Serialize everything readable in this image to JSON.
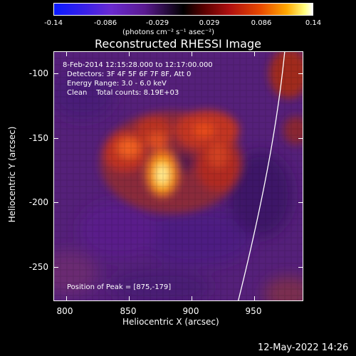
{
  "colorbar": {
    "ticks": [
      "-0.14",
      "-0.086",
      "-0.029",
      "0.029",
      "0.086",
      "0.14"
    ],
    "units": "(photons cm⁻² s⁻¹ asec⁻²)"
  },
  "title": "Reconstructed RHESSI Image",
  "annotations": {
    "time_range": "8-Feb-2014 12:15:28.000 to 12:17:00.000",
    "detectors": "Detectors: 3F 4F 5F 6F 7F 8F, Att 0",
    "energy": "Energy Range: 3.0 - 6.0 keV",
    "method": "Clean    Total counts: 8.19E+03",
    "peak": "Position of Peak = [875,-179]"
  },
  "x_axis": {
    "label": "Heliocentric X (arcsec)",
    "ticks": [
      "800",
      "850",
      "900",
      "950"
    ]
  },
  "y_axis": {
    "label": "Heliocentric Y (arcsec)",
    "ticks": [
      "-100",
      "-150",
      "-200",
      "-250"
    ]
  },
  "footer": "12-May-2022 14:26",
  "colors": {
    "background": "#000000",
    "limb": "#ffffff"
  }
}
